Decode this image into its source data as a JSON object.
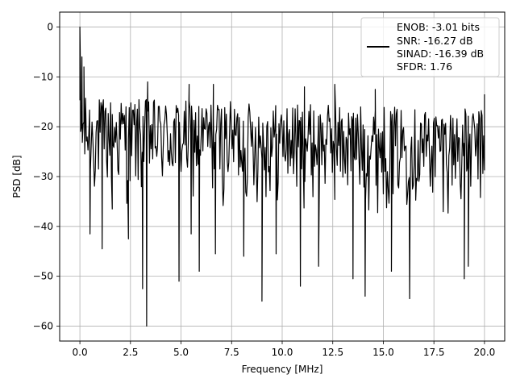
{
  "chart_data": {
    "type": "line",
    "title": "",
    "xlabel": "Frequency [MHz]",
    "ylabel": "PSD [dB]",
    "xlim": [
      -1.0,
      21.0
    ],
    "ylim": [
      -63.0,
      3.0
    ],
    "x_ticks": [
      0.0,
      2.5,
      5.0,
      7.5,
      10.0,
      12.5,
      15.0,
      17.5,
      20.0
    ],
    "x_tick_labels": [
      "0.0",
      "2.5",
      "5.0",
      "7.5",
      "10.0",
      "12.5",
      "15.0",
      "17.5",
      "20.0"
    ],
    "y_ticks": [
      0,
      -10,
      -20,
      -30,
      -40,
      -50,
      -60
    ],
    "y_tick_labels": [
      "0",
      "−10",
      "−20",
      "−30",
      "−40",
      "−50",
      "−60"
    ],
    "grid": true,
    "legend_position": "top-right",
    "series": [
      {
        "name": "",
        "color": "#000000",
        "x_range": [
          0.0,
          20.0
        ],
        "x_step": 0.04,
        "typical_floor_db": [
          -36,
          -14
        ],
        "peak": {
          "x": 0.0,
          "y": 0.0
        },
        "notable_points": [
          {
            "x": 0.03,
            "y": -9
          },
          {
            "x": 0.1,
            "y": -6
          },
          {
            "x": 0.2,
            "y": -8
          },
          {
            "x": 0.5,
            "y": -41.5
          },
          {
            "x": 1.1,
            "y": -44.5
          },
          {
            "x": 1.6,
            "y": -36.5
          },
          {
            "x": 2.4,
            "y": -42.5
          },
          {
            "x": 3.1,
            "y": -52.5
          },
          {
            "x": 3.3,
            "y": -60.0
          },
          {
            "x": 3.35,
            "y": -11.0
          },
          {
            "x": 4.9,
            "y": -51.0
          },
          {
            "x": 5.4,
            "y": -11.5
          },
          {
            "x": 5.5,
            "y": -41.5
          },
          {
            "x": 5.9,
            "y": -49.0
          },
          {
            "x": 6.6,
            "y": -11.5
          },
          {
            "x": 6.7,
            "y": -45.5
          },
          {
            "x": 8.1,
            "y": -46.0
          },
          {
            "x": 9.0,
            "y": -55.0
          },
          {
            "x": 9.7,
            "y": -45.5
          },
          {
            "x": 10.9,
            "y": -52.0
          },
          {
            "x": 11.1,
            "y": -12.0
          },
          {
            "x": 11.8,
            "y": -48.0
          },
          {
            "x": 12.6,
            "y": -11.5
          },
          {
            "x": 13.5,
            "y": -50.5
          },
          {
            "x": 14.1,
            "y": -54.0
          },
          {
            "x": 14.6,
            "y": -12.5
          },
          {
            "x": 15.4,
            "y": -49.0
          },
          {
            "x": 16.3,
            "y": -54.5
          },
          {
            "x": 19.0,
            "y": -50.5
          },
          {
            "x": 19.2,
            "y": -48.0
          },
          {
            "x": 20.0,
            "y": -13.5
          }
        ]
      }
    ],
    "legend": {
      "line_color": "#000000",
      "lines": [
        "ENOB: -3.01 bits",
        "SNR: -16.27 dB",
        "SINAD: -16.39 dB",
        "SFDR: 1.76"
      ]
    }
  }
}
